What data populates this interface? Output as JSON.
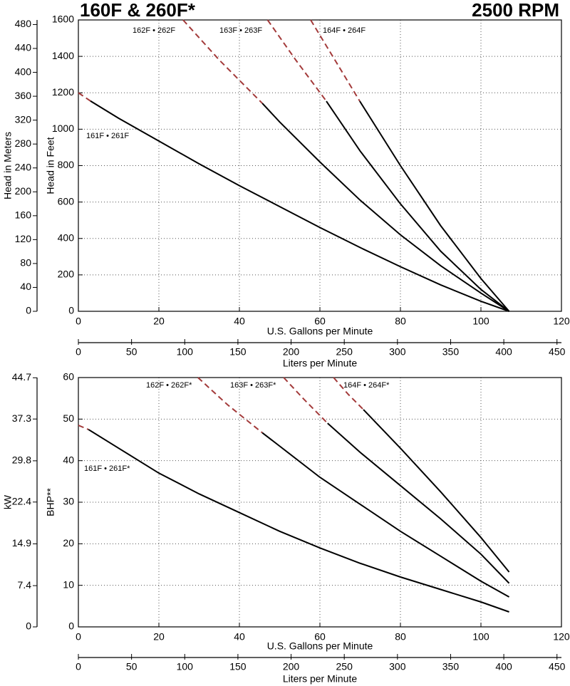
{
  "chart_data": [
    {
      "type": "line",
      "title": "160F & 260F*",
      "subtitle": "2500 RPM",
      "xlabel": "U.S. Gallons per Minute",
      "x2label": "Liters per Minute",
      "ylabel": "Head in Feet",
      "y2label": "Head in Meters",
      "xlim": [
        0,
        120
      ],
      "xticks": [
        0,
        20,
        40,
        60,
        80,
        100,
        120
      ],
      "x2lim": [
        0,
        454.2
      ],
      "x2ticks": [
        0,
        50,
        100,
        150,
        200,
        250,
        300,
        350,
        400,
        450
      ],
      "ylim": [
        0,
        1600
      ],
      "yticks": [
        0,
        200,
        400,
        600,
        800,
        1000,
        1200,
        1400,
        1600
      ],
      "y2lim": [
        0,
        487.7
      ],
      "y2ticks": [
        0,
        40,
        80,
        120,
        160,
        200,
        240,
        280,
        320,
        360,
        400,
        440,
        480
      ],
      "grid": true,
      "series": [
        {
          "name": "161F • 261F",
          "color": "#000000",
          "dash_color": "#a33a3a",
          "dash_end": 3,
          "x": [
            0,
            3,
            10,
            20,
            30,
            40,
            50,
            60,
            70,
            80,
            90,
            100,
            107
          ],
          "values": [
            1200,
            1155,
            1060,
            935,
            810,
            690,
            575,
            460,
            350,
            245,
            145,
            55,
            0
          ]
        },
        {
          "name": "162F • 262F",
          "color": "#000000",
          "dash_color": "#a33a3a",
          "dash_end": 45.7,
          "x": [
            26,
            35,
            45.7,
            50,
            60,
            70,
            80,
            90,
            100,
            107
          ],
          "values": [
            1600,
            1380,
            1142,
            1040,
            820,
            610,
            420,
            250,
            100,
            0
          ]
        },
        {
          "name": "163F • 263F",
          "color": "#000000",
          "dash_color": "#a33a3a",
          "dash_end": 61.6,
          "x": [
            47,
            54,
            61.6,
            70,
            80,
            90,
            100,
            107
          ],
          "values": [
            1600,
            1380,
            1154,
            880,
            590,
            330,
            120,
            0
          ]
        },
        {
          "name": "164F • 264F",
          "color": "#000000",
          "dash_color": "#a33a3a",
          "dash_end": 69.9,
          "x": [
            57.7,
            64,
            69.9,
            80,
            90,
            100,
            107
          ],
          "values": [
            1600,
            1370,
            1154,
            800,
            470,
            180,
            0
          ]
        }
      ]
    },
    {
      "type": "line",
      "xlabel": "U.S. Gallons per Minute",
      "x2label": "Liters per Minute",
      "ylabel": "BHP**",
      "y2label": "kW",
      "xlim": [
        0,
        120
      ],
      "xticks": [
        0,
        20,
        40,
        60,
        80,
        100,
        120
      ],
      "x2lim": [
        0,
        454.2
      ],
      "x2ticks": [
        0,
        50,
        100,
        150,
        200,
        250,
        300,
        350,
        400,
        450
      ],
      "ylim": [
        0,
        60
      ],
      "yticks": [
        0,
        10,
        20,
        30,
        40,
        50,
        60
      ],
      "y2lim": [
        0,
        44.74
      ],
      "y2ticks": [
        0,
        7.4,
        14.9,
        22.4,
        29.8,
        37.3,
        44.7
      ],
      "grid": true,
      "series": [
        {
          "name": "161F • 261F*",
          "color": "#000000",
          "dash_color": "#a33a3a",
          "dash_end": 2.5,
          "x": [
            0,
            2.5,
            10,
            20,
            30,
            40,
            50,
            60,
            70,
            80,
            90,
            100,
            107
          ],
          "values": [
            48.5,
            47.5,
            43,
            37,
            32,
            27.5,
            23,
            19,
            15.3,
            12,
            9,
            6,
            3.6
          ]
        },
        {
          "name": "162F • 262F*",
          "color": "#000000",
          "dash_color": "#a33a3a",
          "dash_end": 45.7,
          "x": [
            29.7,
            37,
            45.7,
            50,
            60,
            70,
            80,
            90,
            100,
            107
          ],
          "values": [
            60,
            53.5,
            46.7,
            43.5,
            36,
            29.5,
            23,
            17,
            11,
            7.2
          ]
        },
        {
          "name": "163F • 263F*",
          "color": "#000000",
          "dash_color": "#a33a3a",
          "dash_end": 61.9,
          "x": [
            51,
            56,
            61.9,
            70,
            80,
            90,
            100,
            107
          ],
          "values": [
            60,
            54.8,
            49,
            42,
            34,
            26,
            17.5,
            10.5
          ]
        },
        {
          "name": "164F • 264F*",
          "color": "#000000",
          "dash_color": "#a33a3a",
          "dash_end": 70.8,
          "x": [
            63.4,
            67,
            70.8,
            80,
            90,
            100,
            107
          ],
          "values": [
            60,
            56,
            52.3,
            43,
            32.5,
            21.5,
            13.2
          ]
        }
      ]
    }
  ]
}
